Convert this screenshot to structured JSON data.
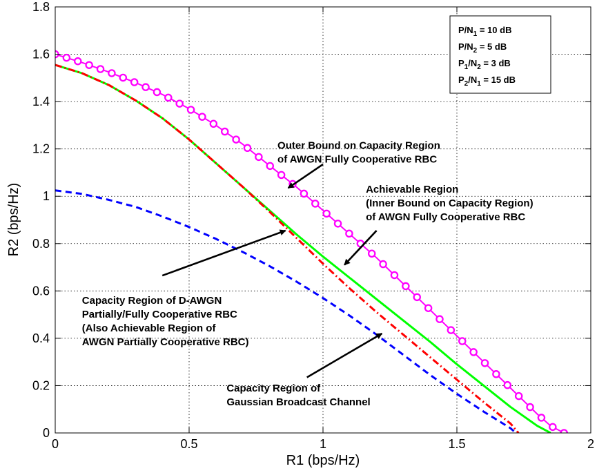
{
  "chart_data": {
    "type": "line",
    "xlabel": "R1 (bps/Hz)",
    "ylabel": "R2 (bps/Hz)",
    "xlim": [
      0,
      2
    ],
    "ylim": [
      0,
      1.8
    ],
    "xticks": [
      0,
      0.5,
      1,
      1.5,
      2
    ],
    "xtick_labels": [
      "0",
      "0.5",
      "1",
      "1.5",
      "2"
    ],
    "yticks": [
      0,
      0.2,
      0.4,
      0.6,
      0.8,
      1,
      1.2,
      1.4,
      1.6,
      1.8
    ],
    "ytick_labels": [
      "0",
      "0.2",
      "0.4",
      "0.6",
      "0.8",
      "1",
      "1.2",
      "1.4",
      "1.6",
      "1.8"
    ],
    "grid": true,
    "series": [
      {
        "key": "outer",
        "color": "#ff00ff",
        "style": "circles",
        "x": [
          0,
          0.1,
          0.2,
          0.3,
          0.4,
          0.5,
          0.6,
          0.7,
          0.8,
          0.9,
          1.0,
          1.1,
          1.2,
          1.3,
          1.4,
          1.5,
          1.6,
          1.7,
          1.8,
          1.85,
          1.9
        ],
        "y": [
          1.6,
          1.565,
          1.525,
          1.48,
          1.43,
          1.37,
          1.3,
          1.22,
          1.13,
          1.04,
          0.94,
          0.84,
          0.74,
          0.63,
          0.52,
          0.41,
          0.3,
          0.19,
          0.08,
          0.03,
          0.0
        ]
      },
      {
        "key": "achievable",
        "color": "#00ff00",
        "style": "solid",
        "x": [
          0,
          0.1,
          0.2,
          0.3,
          0.4,
          0.5,
          0.6,
          0.7,
          0.8,
          0.9,
          1.0,
          1.1,
          1.2,
          1.3,
          1.4,
          1.5,
          1.6,
          1.7,
          1.8,
          1.85
        ],
        "y": [
          1.555,
          1.52,
          1.47,
          1.405,
          1.33,
          1.24,
          1.14,
          1.04,
          0.94,
          0.84,
          0.745,
          0.655,
          0.565,
          0.475,
          0.385,
          0.29,
          0.2,
          0.11,
          0.03,
          0.0
        ]
      },
      {
        "key": "dawgn",
        "color": "#ff0000",
        "style": "dashdot",
        "x": [
          0,
          0.1,
          0.2,
          0.3,
          0.4,
          0.5,
          0.6,
          0.7,
          0.8,
          0.9,
          1.0,
          1.1,
          1.2,
          1.3,
          1.4,
          1.5,
          1.6,
          1.7,
          1.73
        ],
        "y": [
          1.555,
          1.52,
          1.47,
          1.405,
          1.33,
          1.24,
          1.14,
          1.04,
          0.935,
          0.825,
          0.715,
          0.61,
          0.51,
          0.415,
          0.32,
          0.225,
          0.13,
          0.04,
          0.0
        ]
      },
      {
        "key": "broadcast",
        "color": "#0000ff",
        "style": "dashed",
        "x": [
          0,
          0.1,
          0.2,
          0.3,
          0.4,
          0.5,
          0.6,
          0.7,
          0.8,
          0.9,
          1.0,
          1.1,
          1.2,
          1.3,
          1.4,
          1.5,
          1.6,
          1.7,
          1.72
        ],
        "y": [
          1.025,
          1.01,
          0.985,
          0.955,
          0.915,
          0.87,
          0.82,
          0.765,
          0.705,
          0.64,
          0.57,
          0.495,
          0.415,
          0.33,
          0.245,
          0.165,
          0.09,
          0.02,
          0.0
        ]
      }
    ],
    "legend_box": {
      "position": "top-right",
      "lines": [
        [
          "P/N",
          "1",
          " = 10 dB"
        ],
        [
          "P/N",
          "2",
          " = 5 dB"
        ],
        [
          "P",
          "1",
          "/N",
          "2",
          " = 3 dB"
        ],
        [
          "P",
          "2",
          "/N",
          "1",
          " = 15 dB"
        ]
      ]
    },
    "annotations": [
      {
        "lines": [
          "Outer Bound on Capacity Region",
          "of AWGN Fully Cooperative RBC"
        ],
        "text_at": [
          0.83,
          1.2
        ],
        "arrow_from": [
          1.0,
          1.135
        ],
        "arrow_to": [
          0.87,
          1.035
        ]
      },
      {
        "lines": [
          "Achievable Region",
          "(Inner Bound on Capacity Region)",
          "of AWGN Fully Cooperative RBC"
        ],
        "text_at": [
          1.16,
          1.015
        ],
        "arrow_from": [
          1.2,
          0.855
        ],
        "arrow_to": [
          1.08,
          0.71
        ]
      },
      {
        "lines": [
          "Capacity Region of D-AWGN",
          "Partially/Fully Cooperative RBC",
          "(Also Achievable Region of",
          "AWGN Partially Cooperative RBC)"
        ],
        "text_at": [
          0.1,
          0.545
        ],
        "arrow_from": [
          0.4,
          0.665
        ],
        "arrow_to": [
          0.86,
          0.855
        ]
      },
      {
        "lines": [
          "Capacity Region of",
          "Gaussian Broadcast Channel"
        ],
        "text_at": [
          0.64,
          0.175
        ],
        "arrow_from": [
          0.94,
          0.235
        ],
        "arrow_to": [
          1.22,
          0.42
        ]
      }
    ]
  }
}
